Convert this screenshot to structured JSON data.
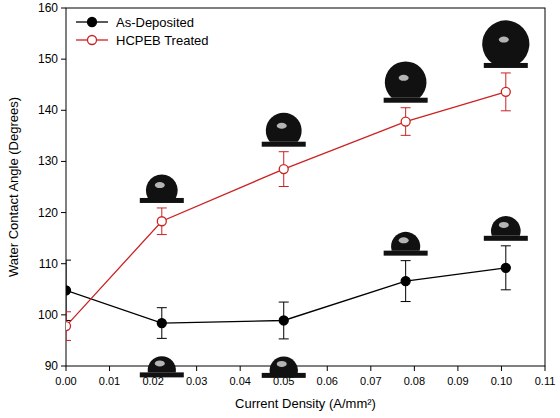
{
  "chart_data": {
    "type": "line",
    "x_label": "Current Density (A/mm²)",
    "y_label": "Water Contact Angle (Degrees)",
    "x": [
      0,
      0.022,
      0.05,
      0.078,
      0.101
    ],
    "series": [
      {
        "name": "As-Deposited",
        "color": "#000000",
        "marker": "circle",
        "line_style": "solid",
        "values": [
          104.8,
          98.4,
          98.9,
          106.6,
          109.2
        ],
        "errors": [
          5.9,
          3.0,
          3.6,
          4.0,
          4.3
        ]
      },
      {
        "name": "HCPEB Treated",
        "color": "#cc2222",
        "marker": "open-circle",
        "line_style": "solid",
        "values": [
          97.8,
          118.3,
          128.5,
          137.8,
          143.6
        ],
        "errors": [
          2.8,
          2.6,
          3.4,
          2.7,
          3.7
        ]
      }
    ],
    "xlim": [
      0,
      0.11
    ],
    "xticks": [
      {
        "value": 0,
        "label": "0.00"
      },
      {
        "value": 0.01,
        "label": "0.01"
      },
      {
        "value": 0.02,
        "label": "0.02"
      },
      {
        "value": 0.03,
        "label": "0.03"
      },
      {
        "value": 0.04,
        "label": "0.04"
      },
      {
        "value": 0.05,
        "label": "0.05"
      },
      {
        "value": 0.06,
        "label": "0.06"
      },
      {
        "value": 0.07,
        "label": "0.07"
      },
      {
        "value": 0.08,
        "label": "0.08"
      },
      {
        "value": 0.09,
        "label": "0.09"
      },
      {
        "value": 0.1,
        "label": "0.10"
      },
      {
        "value": 0.11,
        "label": "0.11"
      }
    ],
    "ylim": [
      90,
      160
    ],
    "yticks": [
      90,
      100,
      110,
      120,
      130,
      140,
      150,
      160
    ],
    "grid": false,
    "legend": "upper left"
  }
}
